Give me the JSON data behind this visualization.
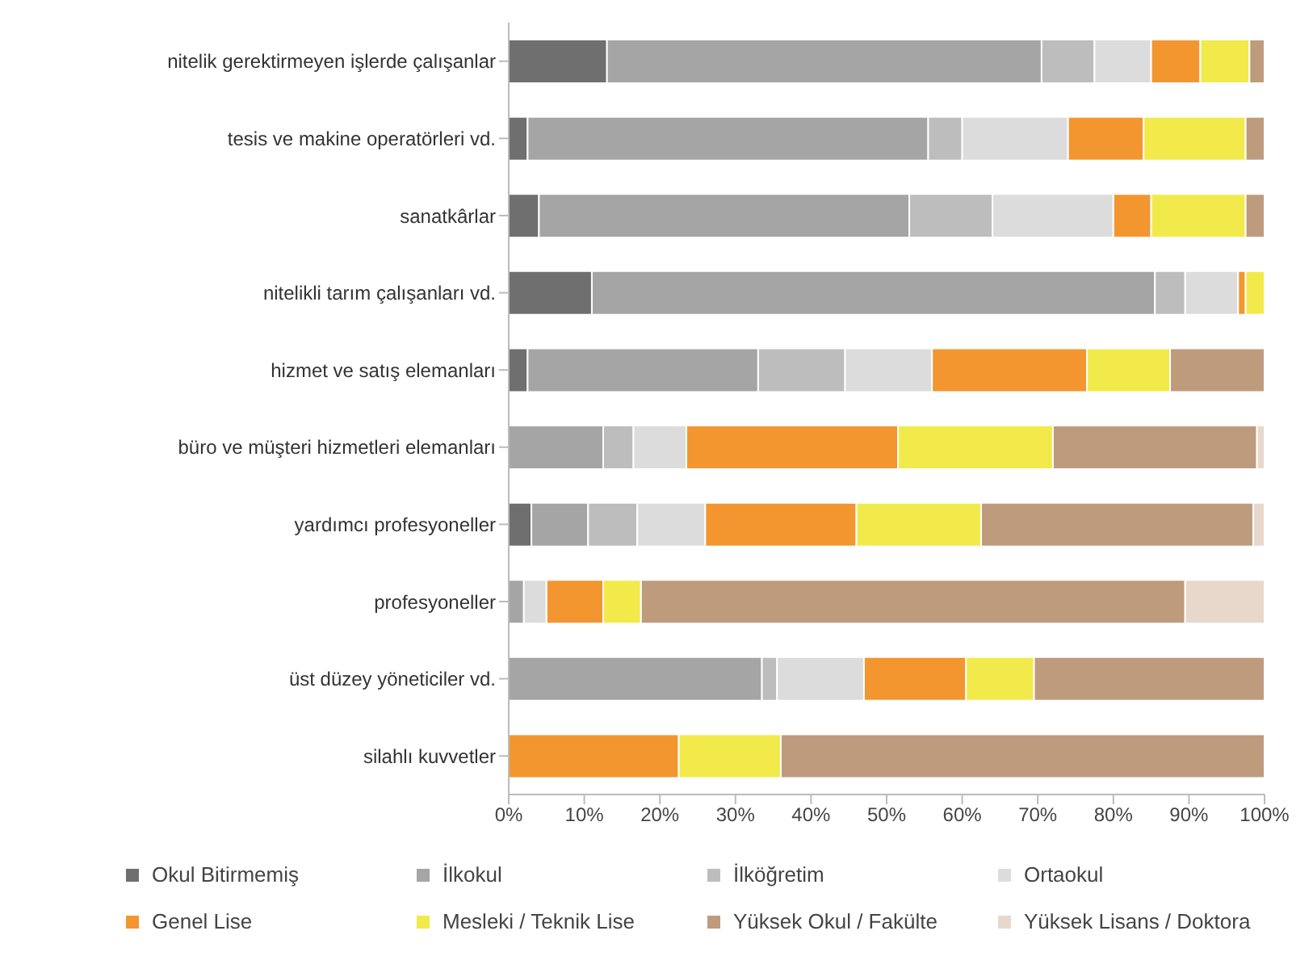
{
  "chart_data": {
    "type": "bar",
    "orientation": "horizontal",
    "stacked": true,
    "categories": [
      "nitelik gerektirmeyen işlerde çalışanlar",
      "tesis ve makine operatörleri vd.",
      "sanatkârlar",
      "nitelikli tarım çalışanları vd.",
      "hizmet ve satış elemanları",
      "büro ve müşteri hizmetleri elemanları",
      "yardımcı profesyoneller",
      "profesyoneller",
      "üst düzey yöneticiler vd.",
      "silahlı kuvvetler"
    ],
    "series": [
      {
        "name": "Okul Bitirmemiş",
        "color": "#6f6f6f",
        "values": [
          13,
          2.5,
          4,
          11,
          2.5,
          0,
          3,
          0,
          0,
          0
        ]
      },
      {
        "name": "İlkokul",
        "color": "#a5a5a5",
        "values": [
          57.5,
          53,
          49,
          74.5,
          30.5,
          12.5,
          7.5,
          2,
          33.5,
          0
        ]
      },
      {
        "name": "İlköğretim",
        "color": "#bdbdbd",
        "values": [
          7,
          4.5,
          11,
          4,
          11.5,
          4,
          6.5,
          0,
          2,
          0
        ]
      },
      {
        "name": "Ortaokul",
        "color": "#dcdcdc",
        "values": [
          7.5,
          14,
          16,
          7,
          11.5,
          7,
          9,
          3,
          11.5,
          0
        ]
      },
      {
        "name": "Genel Lise",
        "color": "#f39630",
        "values": [
          6.5,
          10,
          5,
          1,
          20.5,
          28,
          20,
          7.5,
          13.5,
          22.5
        ]
      },
      {
        "name": "Mesleki / Teknik Lise",
        "color": "#f2ea4a",
        "values": [
          6.5,
          13.5,
          12.5,
          2.5,
          11,
          20.5,
          16.5,
          5,
          9,
          13.5
        ]
      },
      {
        "name": "Yüksek Okul / Fakülte",
        "color": "#bf9b7e",
        "values": [
          2,
          2.5,
          2.5,
          0,
          12.5,
          27,
          36,
          72,
          30.5,
          64
        ]
      },
      {
        "name": "Yüksek Lisans / Doktora",
        "color": "#e8d8cc",
        "values": [
          0,
          0,
          0,
          0,
          0,
          1,
          1.5,
          10.5,
          0,
          0
        ]
      }
    ],
    "xlim": [
      0,
      100
    ],
    "xticks": [
      {
        "value": 0,
        "label": "0%"
      },
      {
        "value": 10,
        "label": "10%"
      },
      {
        "value": 20,
        "label": "20%"
      },
      {
        "value": 30,
        "label": "30%"
      },
      {
        "value": 40,
        "label": "40%"
      },
      {
        "value": 50,
        "label": "50%"
      },
      {
        "value": 60,
        "label": "60%"
      },
      {
        "value": 70,
        "label": "70%"
      },
      {
        "value": 80,
        "label": "80%"
      },
      {
        "value": 90,
        "label": "90%"
      },
      {
        "value": 100,
        "label": "100%"
      }
    ],
    "grid": false,
    "legend": "bottom"
  }
}
